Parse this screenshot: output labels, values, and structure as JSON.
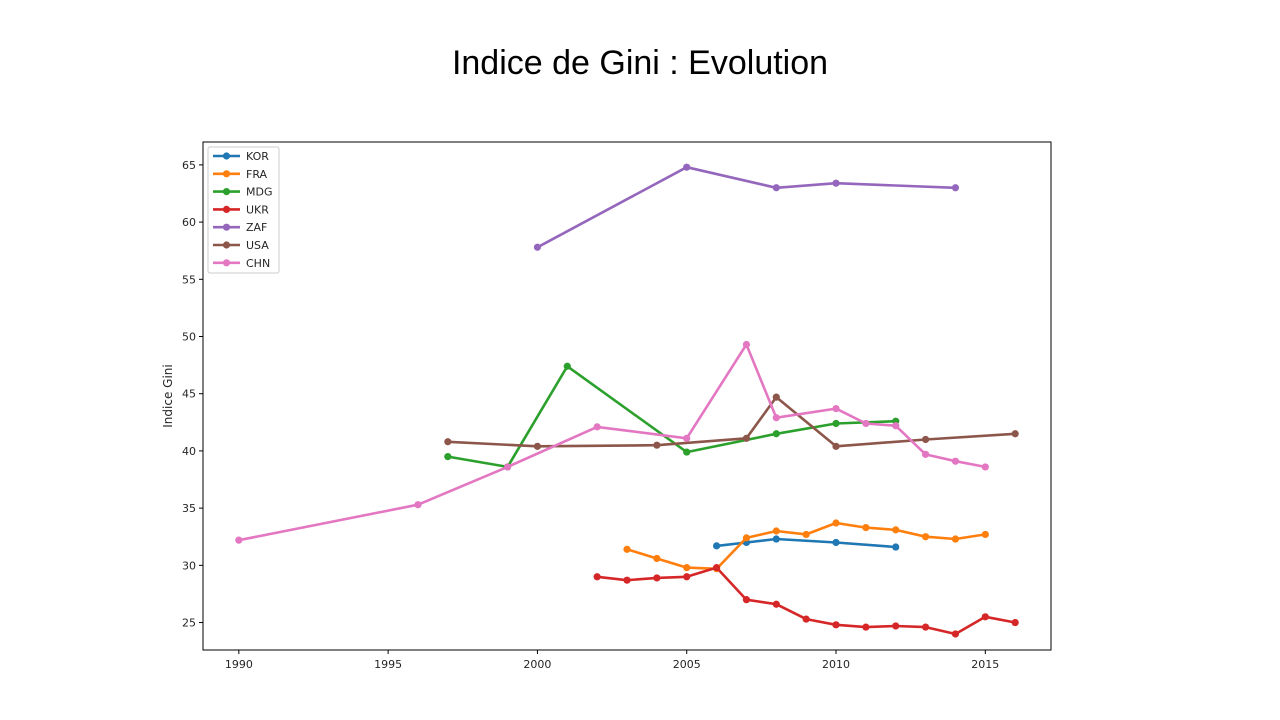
{
  "slide": {
    "title": "Indice de Gini :  Evolution"
  },
  "chart_data": {
    "type": "line",
    "title": "",
    "xlabel": "",
    "ylabel": "Indice Gini",
    "xlim": [
      1988.8,
      2017.2
    ],
    "ylim": [
      22.6,
      67
    ],
    "xticks": [
      1990,
      1995,
      2000,
      2005,
      2010,
      2015
    ],
    "yticks": [
      25,
      30,
      35,
      40,
      45,
      50,
      55,
      60,
      65
    ],
    "grid": false,
    "legend_position": "top-left",
    "series": [
      {
        "name": "KOR",
        "color": "#1f77b4",
        "x": [
          2006,
          2007,
          2008,
          2010,
          2012
        ],
        "y": [
          31.7,
          32.0,
          32.3,
          32.0,
          31.6
        ]
      },
      {
        "name": "FRA",
        "color": "#ff7f0e",
        "x": [
          2003,
          2004,
          2005,
          2006,
          2007,
          2008,
          2009,
          2010,
          2011,
          2012,
          2013,
          2014,
          2015
        ],
        "y": [
          31.4,
          30.6,
          29.8,
          29.7,
          32.4,
          33.0,
          32.7,
          33.7,
          33.3,
          33.1,
          32.5,
          32.3,
          32.7
        ]
      },
      {
        "name": "MDG",
        "color": "#2ca02c",
        "x": [
          1997,
          1999,
          2001,
          2005,
          2008,
          2010,
          2012
        ],
        "y": [
          39.5,
          38.6,
          47.4,
          39.9,
          41.5,
          42.4,
          42.6
        ]
      },
      {
        "name": "UKR",
        "color": "#d62728",
        "x": [
          2002,
          2003,
          2004,
          2005,
          2006,
          2007,
          2008,
          2009,
          2010,
          2011,
          2012,
          2013,
          2014,
          2015,
          2016
        ],
        "y": [
          29.0,
          28.7,
          28.9,
          29.0,
          29.8,
          27.0,
          26.6,
          25.3,
          24.8,
          24.6,
          24.7,
          24.6,
          24.0,
          25.5,
          25.0
        ]
      },
      {
        "name": "ZAF",
        "color": "#9467bd",
        "x": [
          2000,
          2005,
          2008,
          2010,
          2014
        ],
        "y": [
          57.8,
          64.8,
          63.0,
          63.4,
          63.0
        ]
      },
      {
        "name": "USA",
        "color": "#8c564b",
        "x": [
          1997,
          2000,
          2004,
          2007,
          2008,
          2010,
          2013,
          2016
        ],
        "y": [
          40.8,
          40.4,
          40.5,
          41.1,
          44.7,
          40.4,
          41.0,
          41.5
        ]
      },
      {
        "name": "CHN",
        "color": "#e377c2",
        "x": [
          1990,
          1996,
          1999,
          2002,
          2005,
          2007,
          2008,
          2010,
          2011,
          2012,
          2013,
          2014,
          2015
        ],
        "y": [
          32.2,
          35.3,
          38.6,
          42.1,
          41.1,
          49.3,
          42.9,
          43.7,
          42.4,
          42.2,
          39.7,
          39.1,
          38.6
        ]
      }
    ]
  }
}
